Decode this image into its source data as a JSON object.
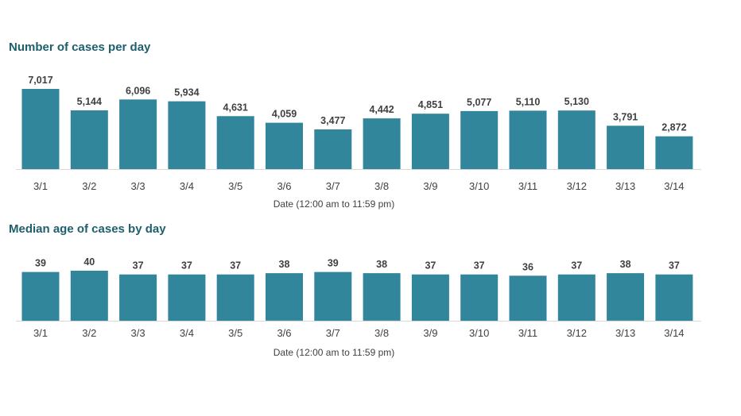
{
  "chart_data": [
    {
      "type": "bar",
      "title": "Number of cases per day",
      "xlabel": "Date (12:00 am to 11:59 pm)",
      "ylabel": "",
      "categories": [
        "3/1",
        "3/2",
        "3/3",
        "3/4",
        "3/5",
        "3/6",
        "3/7",
        "3/8",
        "3/9",
        "3/10",
        "3/11",
        "3/12",
        "3/13",
        "3/14"
      ],
      "values": [
        7017,
        5144,
        6096,
        5934,
        4631,
        4059,
        3477,
        4442,
        4851,
        5077,
        5110,
        5130,
        3791,
        2872
      ],
      "value_labels": [
        "7,017",
        "5,144",
        "6,096",
        "5,934",
        "4,631",
        "4,059",
        "3,477",
        "4,442",
        "4,851",
        "5,077",
        "5,110",
        "5,130",
        "3,791",
        "2,872"
      ],
      "ylim": [
        0,
        7017
      ],
      "color": "#31869b",
      "grid": false,
      "legend": "none"
    },
    {
      "type": "bar",
      "title": "Median age of cases by day",
      "xlabel": "Date (12:00 am to 11:59 pm)",
      "ylabel": "",
      "categories": [
        "3/1",
        "3/2",
        "3/3",
        "3/4",
        "3/5",
        "3/6",
        "3/7",
        "3/8",
        "3/9",
        "3/10",
        "3/11",
        "3/12",
        "3/13",
        "3/14"
      ],
      "values": [
        39,
        40,
        37,
        37,
        37,
        38,
        39,
        38,
        37,
        37,
        36,
        37,
        38,
        37
      ],
      "value_labels": [
        "39",
        "40",
        "37",
        "37",
        "37",
        "38",
        "39",
        "38",
        "37",
        "37",
        "36",
        "37",
        "38",
        "37"
      ],
      "ylim": [
        0,
        40
      ],
      "color": "#31869b",
      "grid": false,
      "legend": "none"
    }
  ]
}
